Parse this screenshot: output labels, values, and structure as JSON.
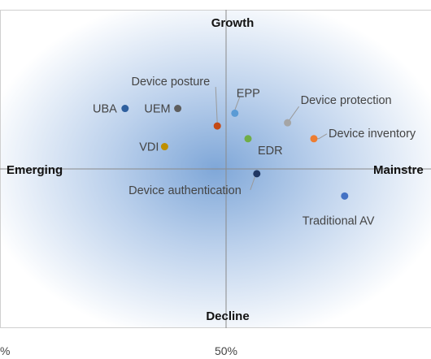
{
  "chart_data": {
    "type": "scatter",
    "title": "",
    "axis_titles": {
      "top": "Growth",
      "bottom": "Decline",
      "left": "Emerging",
      "right": "Mainstre"
    },
    "x_tick_labels": [
      "%",
      "50%"
    ],
    "x_tick_values": [
      0,
      50
    ],
    "xlim": [
      0,
      100
    ],
    "ylim": [
      -50,
      50
    ],
    "points": [
      {
        "label": "UBA",
        "x": 27,
        "y": 19,
        "color": "#2e5f9e"
      },
      {
        "label": "UEM",
        "x": 39,
        "y": 19,
        "color": "#5e5e5e"
      },
      {
        "label": "Device posture",
        "x": 48,
        "y": 13.5,
        "color": "#c44a15"
      },
      {
        "label": "EPP",
        "x": 52,
        "y": 17.5,
        "color": "#5b9bd5"
      },
      {
        "label": "Device protection",
        "x": 64,
        "y": 14.5,
        "color": "#a5a5a5"
      },
      {
        "label": "Device inventory",
        "x": 70,
        "y": 9.5,
        "color": "#ed7d31"
      },
      {
        "label": "EDR",
        "x": 55,
        "y": 9.5,
        "color": "#70ad47"
      },
      {
        "label": "VDI",
        "x": 36,
        "y": 7,
        "color": "#bf8f00"
      },
      {
        "label": "Device authentication",
        "x": 57,
        "y": -1.5,
        "color": "#203864"
      },
      {
        "label": "Traditional AV",
        "x": 77,
        "y": -8.5,
        "color": "#4472c4"
      }
    ]
  }
}
